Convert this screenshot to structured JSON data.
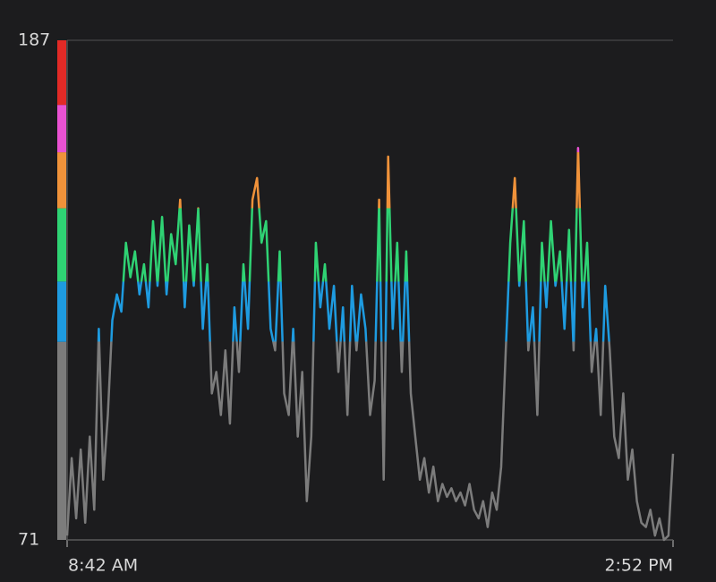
{
  "chart_data": {
    "type": "line",
    "categories": [
      "8:42 AM",
      null,
      null,
      null,
      null,
      null,
      null,
      null,
      null,
      null,
      null,
      null,
      null,
      null,
      null,
      null,
      null,
      null,
      null,
      null,
      null,
      null,
      null,
      null,
      null,
      null,
      null,
      null,
      null,
      null,
      null,
      null,
      null,
      null,
      null,
      null,
      null,
      null,
      null,
      null,
      null,
      null,
      null,
      null,
      null,
      null,
      null,
      null,
      null,
      null,
      null,
      null,
      null,
      null,
      null,
      null,
      null,
      null,
      null,
      null,
      null,
      null,
      null,
      null,
      null,
      null,
      null,
      null,
      null,
      null,
      null,
      null,
      null,
      null,
      null,
      null,
      null,
      null,
      null,
      null,
      null,
      null,
      null,
      null,
      null,
      null,
      null,
      null,
      null,
      null,
      null,
      null,
      null,
      null,
      null,
      null,
      null,
      null,
      null,
      null,
      null,
      null,
      null,
      null,
      null,
      null,
      null,
      null,
      null,
      null,
      null,
      null,
      null,
      null,
      null,
      null,
      null,
      null,
      null,
      null,
      null,
      null,
      null,
      null,
      null,
      null,
      null,
      null,
      null,
      null,
      null,
      null,
      null,
      null,
      "2:52 PM"
    ],
    "values": [
      72,
      90,
      76,
      92,
      75,
      95,
      78,
      120,
      85,
      100,
      122,
      128,
      124,
      140,
      132,
      138,
      128,
      135,
      125,
      145,
      130,
      146,
      128,
      142,
      135,
      150,
      125,
      144,
      130,
      148,
      120,
      135,
      105,
      110,
      100,
      115,
      98,
      125,
      110,
      135,
      120,
      150,
      155,
      140,
      145,
      120,
      115,
      138,
      105,
      100,
      120,
      95,
      110,
      80,
      95,
      140,
      125,
      135,
      120,
      130,
      110,
      125,
      100,
      130,
      115,
      128,
      120,
      100,
      108,
      150,
      85,
      160,
      120,
      140,
      110,
      138,
      105,
      95,
      85,
      90,
      82,
      88,
      80,
      84,
      81,
      83,
      80,
      82,
      79,
      84,
      78,
      76,
      80,
      74,
      82,
      78,
      88,
      115,
      140,
      155,
      130,
      145,
      115,
      125,
      100,
      140,
      125,
      145,
      130,
      138,
      120,
      143,
      115,
      162,
      125,
      140,
      110,
      120,
      100,
      130,
      115,
      95,
      90,
      105,
      85,
      92,
      80,
      75,
      74,
      78,
      72,
      76,
      71,
      72,
      91
    ],
    "zones": [
      {
        "from": 71,
        "to": 117,
        "color": "#7c7c7c"
      },
      {
        "from": 117,
        "to": 131,
        "color": "#1e9be0"
      },
      {
        "from": 131,
        "to": 148,
        "color": "#2fd374"
      },
      {
        "from": 148,
        "to": 161,
        "color": "#f0923a"
      },
      {
        "from": 161,
        "to": 172,
        "color": "#ea52d2"
      },
      {
        "from": 172,
        "to": 187,
        "color": "#e12a26"
      }
    ],
    "ylim": [
      71,
      187
    ],
    "yticks": [
      71,
      187
    ],
    "grid": true
  }
}
